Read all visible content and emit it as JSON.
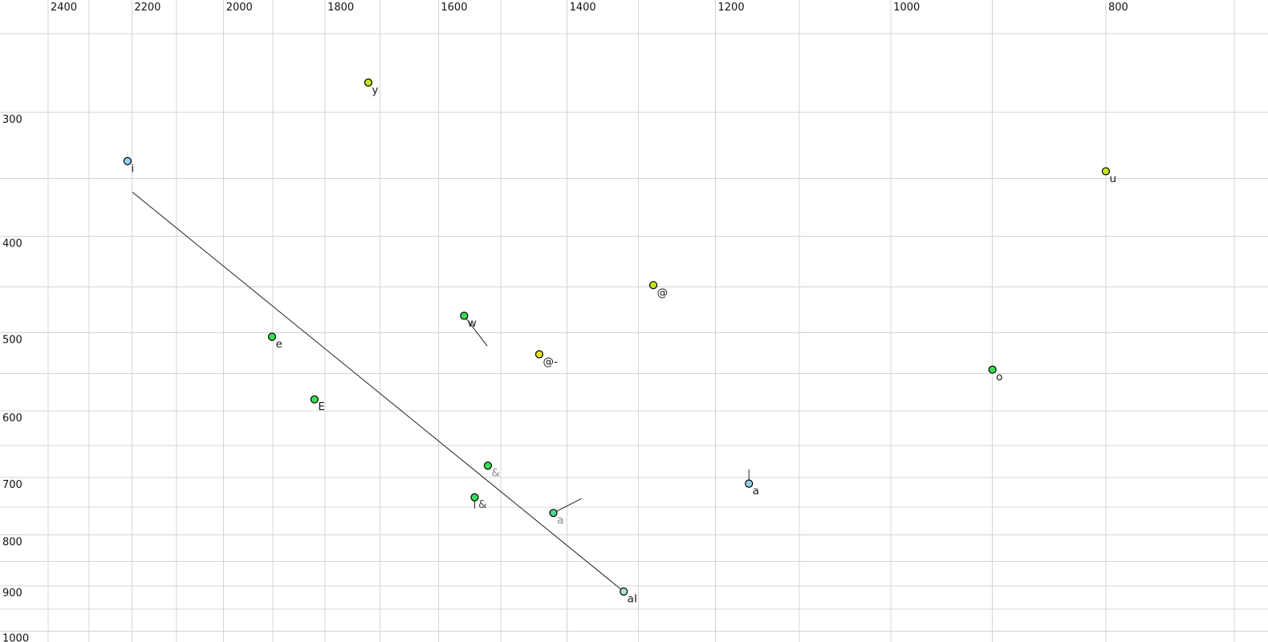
{
  "colors": {
    "background": "#ffffff",
    "grid": "#d4d4d4",
    "tick_text": "#111111",
    "line": "#222222",
    "point_outline": "#000000",
    "sky_blue": "#90d2f0",
    "chartreuse": "#c3e51e",
    "yellow": "#e4e32a",
    "green": "#3cdc58",
    "seafoam": "#4bd492",
    "pale_turquoise": "#a4ebdd",
    "label_black": "#1a1a1a",
    "label_gray": "#8c8c8c",
    "label_dark_gray": "#4a4a4a"
  },
  "chart_data": {
    "type": "scatter",
    "description": "Vowel formant plot: F2 (Hz) on top axis decreasing rightward, F1 (Hz) on left axis increasing downward, both logarithmic",
    "x_axis": {
      "unit": "Hz",
      "scale": "log",
      "reversed": true,
      "tick_side": "top",
      "ticks": [
        2400,
        2200,
        2000,
        1800,
        1600,
        1400,
        1200,
        1000,
        800
      ],
      "gridlines": [
        2400,
        2300,
        2200,
        2100,
        2000,
        1900,
        1800,
        1700,
        1600,
        1500,
        1400,
        1300,
        1200,
        1100,
        1000,
        900,
        800,
        700
      ],
      "edge_values": [
        2523,
        676
      ]
    },
    "y_axis": {
      "unit": "Hz",
      "scale": "log",
      "direction": "increasing-downward",
      "tick_side": "left",
      "ticks": [
        300,
        400,
        500,
        600,
        700,
        800,
        900,
        1000
      ],
      "gridlines": [
        250,
        300,
        350,
        400,
        450,
        500,
        550,
        600,
        650,
        700,
        750,
        800,
        850,
        900,
        950,
        1000
      ],
      "edge_values": [
        231.2,
        1025.3
      ]
    },
    "grid": true,
    "legend": false,
    "points": [
      {
        "label": "i",
        "f2": 2210,
        "f1": 336,
        "fill": "sky_blue",
        "label_color": "black"
      },
      {
        "label": "y",
        "f2": 1721,
        "f1": 280,
        "fill": "chartreuse",
        "label_color": "black"
      },
      {
        "label": "u",
        "f2": 800,
        "f1": 344,
        "fill": "chartreuse",
        "label_color": "black"
      },
      {
        "label": "@",
        "f2": 1280,
        "f1": 448,
        "fill": "chartreuse",
        "label_color": "black"
      },
      {
        "label": "w",
        "f2": 1558,
        "f1": 481,
        "fill": "green",
        "label_color": "black",
        "glide_to": {
          "f2": 1521,
          "f1": 516
        }
      },
      {
        "label": "e",
        "f2": 1902,
        "f1": 505,
        "fill": "green",
        "label_color": "black"
      },
      {
        "label": "@-",
        "f2": 1441,
        "f1": 526,
        "fill": "yellow",
        "label_color": "black"
      },
      {
        "label": "o",
        "f2": 900,
        "f1": 545,
        "fill": "green",
        "label_color": "black"
      },
      {
        "label": "E",
        "f2": 1820,
        "f1": 584,
        "fill": "green",
        "label_color": "black"
      },
      {
        "label": "&",
        "f2": 1520,
        "f1": 681,
        "fill": "green",
        "label_color": "gray"
      },
      {
        "label": "a",
        "f2": 1159,
        "f1": 710,
        "fill": "sky_blue",
        "label_color": "black",
        "glide_to": {
          "f2": 1159,
          "f1": 687
        }
      },
      {
        "label": "&",
        "f2": 1541,
        "f1": 733,
        "fill": "green",
        "label_color": "dark_gray",
        "glide_to": {
          "f2": 1541,
          "f1": 752
        }
      },
      {
        "label": "a",
        "f2": 1420,
        "f1": 760,
        "fill": "seafoam",
        "label_color": "gray",
        "glide_to": {
          "f2": 1379,
          "f1": 735
        }
      },
      {
        "label": "aI",
        "f2": 1320,
        "f1": 912,
        "fill": "pale_turquoise",
        "label_color": "black",
        "trajectory_from": {
          "f2": 2199,
          "f1": 361
        }
      }
    ]
  }
}
